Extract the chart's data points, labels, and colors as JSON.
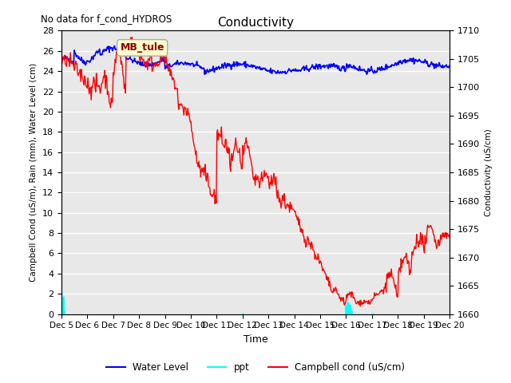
{
  "title": "Conductivity",
  "top_left_text": "No data for f_cond_HYDROS",
  "xlabel": "Time",
  "ylabel_left": "Campbell Cond (uS/m), Rain (mm), Water Level (cm)",
  "ylabel_right": "Conductivity (uS/cm)",
  "ylim_left": [
    0,
    28
  ],
  "ylim_right": [
    1660,
    1710
  ],
  "yticks_left": [
    0,
    2,
    4,
    6,
    8,
    10,
    12,
    14,
    16,
    18,
    20,
    22,
    24,
    26,
    28
  ],
  "yticks_right": [
    1660,
    1665,
    1670,
    1675,
    1680,
    1685,
    1690,
    1695,
    1700,
    1705,
    1710
  ],
  "xtick_labels": [
    "Dec 5",
    "Dec 6",
    "Dec 7",
    "Dec 8",
    "Dec 9",
    "Dec 10",
    "Dec 11",
    "Dec 12",
    "Dec 13",
    "Dec 14",
    "Dec 15",
    "Dec 16",
    "Dec 17",
    "Dec 18",
    "Dec 19",
    "Dec 20"
  ],
  "background_color": "#e8e8e8",
  "grid_color": "#ffffff",
  "legend_items": [
    "Water Level",
    "ppt",
    "Campbell cond (uS/cm)"
  ],
  "annotation_box_text": "MB_tule",
  "annotation_box_color": "#ffffcc",
  "annotation_box_edge": "#aaaaaa"
}
